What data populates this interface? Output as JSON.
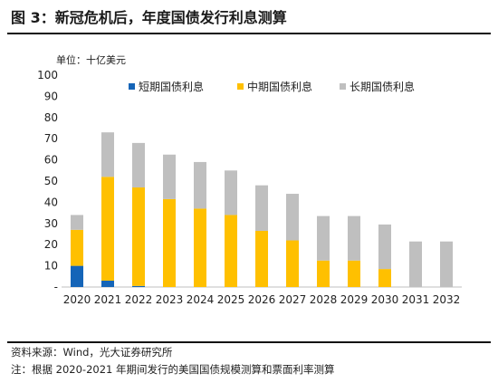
{
  "figure": {
    "title": "图 3：新冠危机后，年度国债发行利息测算",
    "unit": "单位：十亿美元",
    "source": "资料来源：Wind，光大证券研究所",
    "note": "注：根据 2020-2021 年期间发行的美国国债规模测算和票面利率测算"
  },
  "chart_data": {
    "type": "bar",
    "stacked": true,
    "title": "",
    "xlabel": "",
    "ylabel": "",
    "categories": [
      "2020",
      "2021",
      "2022",
      "2023",
      "2024",
      "2025",
      "2026",
      "2027",
      "2028",
      "2029",
      "2030",
      "2031",
      "2032"
    ],
    "yticks": [
      "-",
      "10",
      "20",
      "30",
      "40",
      "50",
      "60",
      "70",
      "80",
      "90",
      "100"
    ],
    "ylim": [
      0,
      100
    ],
    "grid": false,
    "legend_position": "top",
    "series": [
      {
        "name": "短期国债利息",
        "color": "#1565b8",
        "values": [
          10,
          3,
          0.5,
          0,
          0,
          0,
          0,
          0,
          0,
          0,
          0,
          0,
          0
        ]
      },
      {
        "name": "中期国债利息",
        "color": "#ffc000",
        "values": [
          17,
          49,
          46.5,
          41.5,
          37,
          34,
          26.5,
          22,
          12.5,
          12.5,
          8.5,
          0,
          0
        ]
      },
      {
        "name": "长期国债利息",
        "color": "#bfbfbf",
        "values": [
          7,
          21,
          21,
          21,
          22,
          21,
          21.5,
          22,
          21,
          21,
          21,
          21.5,
          21.5
        ]
      }
    ]
  }
}
